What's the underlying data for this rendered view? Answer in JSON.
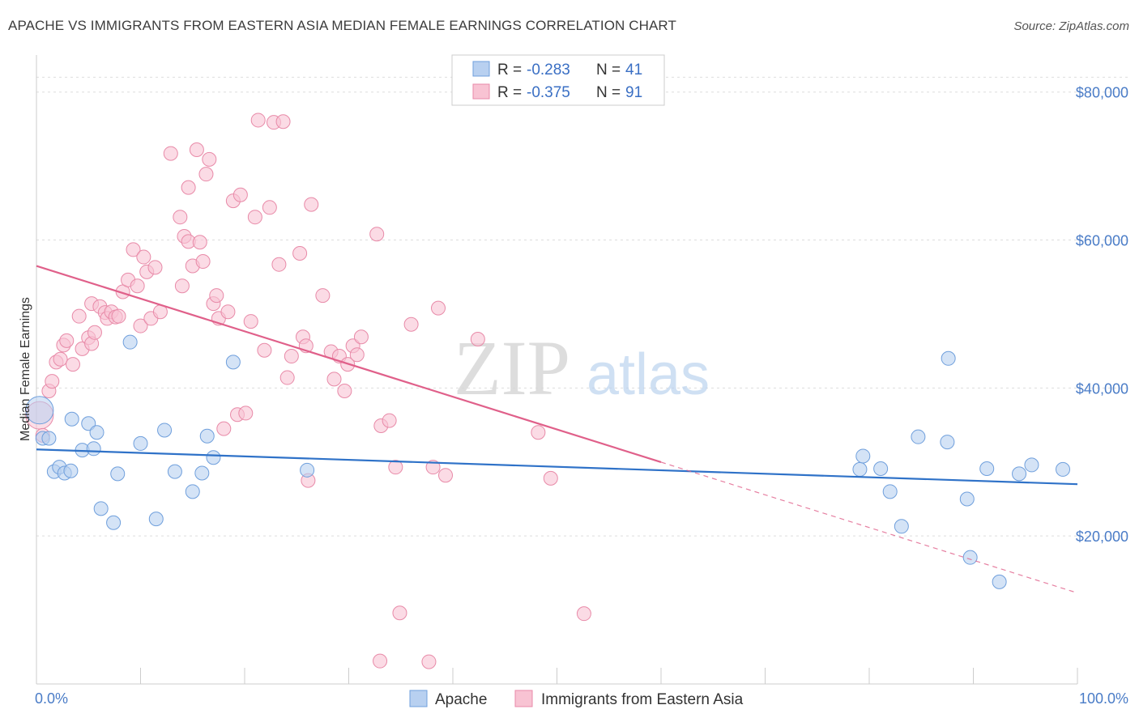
{
  "title": "APACHE VS IMMIGRANTS FROM EASTERN ASIA MEDIAN FEMALE EARNINGS CORRELATION CHART",
  "source": "Source: ZipAtlas.com",
  "watermark": {
    "zip": "ZIP",
    "atlas": "atlas"
  },
  "colors": {
    "apache_fill": "#b8d0f0",
    "apache_stroke": "#6f9fdc",
    "apache_line": "#2f72c8",
    "imm_fill": "#f8c3d3",
    "imm_stroke": "#e88aa8",
    "imm_line": "#e0608a",
    "axis_text": "#4a7cc7",
    "grid": "#dddddd"
  },
  "legend": {
    "rows": [
      {
        "r_label": "R = ",
        "r_value": "-0.283",
        "n_label": "N = ",
        "n_value": "41"
      },
      {
        "r_label": "R = ",
        "r_value": "-0.375",
        "n_label": "N = ",
        "n_value": "91"
      }
    ]
  },
  "chart_data": {
    "type": "scatter",
    "ylabel": "Median Female Earnings",
    "xlim": [
      0,
      100
    ],
    "ylim": [
      0,
      85000
    ],
    "x_tick_labels": [
      "0.0%",
      "100.0%"
    ],
    "y_ticks": [
      20000,
      40000,
      60000,
      80000
    ],
    "y_tick_labels": [
      "$20,000",
      "$40,000",
      "$60,000",
      "$80,000"
    ],
    "grid": true,
    "legend_position": "top-center",
    "series": [
      {
        "name": "Apache",
        "trend": {
          "x": [
            0,
            100
          ],
          "y": [
            31700,
            27000
          ],
          "solid_until": 100
        },
        "points": [
          [
            0.3,
            37000
          ],
          [
            0.6,
            33200
          ],
          [
            1.2,
            33200
          ],
          [
            1.7,
            28700
          ],
          [
            2.2,
            29300
          ],
          [
            2.7,
            28500
          ],
          [
            3.3,
            28800
          ],
          [
            3.4,
            35800
          ],
          [
            4.4,
            31600
          ],
          [
            5.0,
            35200
          ],
          [
            5.5,
            31800
          ],
          [
            5.8,
            34000
          ],
          [
            6.2,
            23700
          ],
          [
            7.4,
            21800
          ],
          [
            7.8,
            28400
          ],
          [
            9.0,
            46200
          ],
          [
            10.0,
            32500
          ],
          [
            11.5,
            22300
          ],
          [
            12.3,
            34300
          ],
          [
            13.3,
            28700
          ],
          [
            15.0,
            26000
          ],
          [
            15.9,
            28500
          ],
          [
            16.4,
            33500
          ],
          [
            17.0,
            30600
          ],
          [
            18.9,
            43500
          ],
          [
            26.0,
            28900
          ],
          [
            79.1,
            29000
          ],
          [
            79.4,
            30800
          ],
          [
            81.1,
            29100
          ],
          [
            82.0,
            26000
          ],
          [
            83.1,
            21300
          ],
          [
            84.7,
            33400
          ],
          [
            87.6,
            44000
          ],
          [
            87.5,
            32700
          ],
          [
            89.4,
            25000
          ],
          [
            89.7,
            17100
          ],
          [
            91.3,
            29100
          ],
          [
            92.5,
            13800
          ],
          [
            94.4,
            28400
          ],
          [
            95.6,
            29600
          ],
          [
            98.6,
            29000
          ]
        ]
      },
      {
        "name": "Immigrants from Eastern Asia",
        "trend": {
          "x": [
            0,
            100
          ],
          "y": [
            56500,
            12300
          ],
          "solid_until": 60
        },
        "points": [
          [
            0.3,
            36300
          ],
          [
            0.6,
            33600
          ],
          [
            1.2,
            39600
          ],
          [
            1.5,
            40900
          ],
          [
            1.9,
            43500
          ],
          [
            2.3,
            43900
          ],
          [
            2.6,
            45800
          ],
          [
            2.9,
            46400
          ],
          [
            3.5,
            43200
          ],
          [
            4.1,
            49700
          ],
          [
            4.4,
            45300
          ],
          [
            5.0,
            46800
          ],
          [
            5.3,
            46000
          ],
          [
            5.6,
            47500
          ],
          [
            5.3,
            51400
          ],
          [
            6.1,
            51000
          ],
          [
            6.6,
            50200
          ],
          [
            6.8,
            49400
          ],
          [
            7.2,
            50300
          ],
          [
            7.6,
            49600
          ],
          [
            7.9,
            49700
          ],
          [
            8.3,
            53000
          ],
          [
            8.8,
            54600
          ],
          [
            9.3,
            58700
          ],
          [
            9.7,
            53800
          ],
          [
            10.0,
            48400
          ],
          [
            10.3,
            57700
          ],
          [
            10.6,
            55700
          ],
          [
            11.0,
            49400
          ],
          [
            11.4,
            56300
          ],
          [
            11.9,
            50300
          ],
          [
            12.9,
            71700
          ],
          [
            13.8,
            63100
          ],
          [
            14.0,
            53800
          ],
          [
            14.2,
            60500
          ],
          [
            14.6,
            59800
          ],
          [
            14.6,
            67100
          ],
          [
            15.0,
            56500
          ],
          [
            15.4,
            72200
          ],
          [
            15.7,
            59700
          ],
          [
            16.0,
            57100
          ],
          [
            16.3,
            68900
          ],
          [
            16.6,
            70900
          ],
          [
            17.0,
            51400
          ],
          [
            17.3,
            52500
          ],
          [
            17.5,
            49400
          ],
          [
            18.0,
            34500
          ],
          [
            18.4,
            50300
          ],
          [
            18.9,
            65300
          ],
          [
            19.3,
            36400
          ],
          [
            19.6,
            66100
          ],
          [
            20.1,
            36600
          ],
          [
            20.6,
            49000
          ],
          [
            21.0,
            63100
          ],
          [
            21.3,
            76200
          ],
          [
            21.9,
            45100
          ],
          [
            22.4,
            64400
          ],
          [
            22.8,
            75900
          ],
          [
            23.3,
            56700
          ],
          [
            23.7,
            76000
          ],
          [
            24.1,
            41400
          ],
          [
            24.5,
            44300
          ],
          [
            25.3,
            58200
          ],
          [
            25.6,
            46900
          ],
          [
            25.9,
            45700
          ],
          [
            26.1,
            27500
          ],
          [
            26.4,
            64800
          ],
          [
            27.5,
            52500
          ],
          [
            28.3,
            44900
          ],
          [
            28.6,
            41200
          ],
          [
            29.1,
            44300
          ],
          [
            29.6,
            39600
          ],
          [
            29.9,
            43200
          ],
          [
            30.4,
            45700
          ],
          [
            30.8,
            44500
          ],
          [
            31.2,
            46900
          ],
          [
            32.7,
            60800
          ],
          [
            33.0,
            3100
          ],
          [
            33.1,
            34900
          ],
          [
            33.9,
            35600
          ],
          [
            34.5,
            29300
          ],
          [
            34.9,
            9600
          ],
          [
            36.0,
            48600
          ],
          [
            37.7,
            3000
          ],
          [
            38.1,
            29300
          ],
          [
            38.6,
            50800
          ],
          [
            39.3,
            28200
          ],
          [
            42.4,
            46600
          ],
          [
            48.2,
            34000
          ],
          [
            49.4,
            27800
          ],
          [
            52.6,
            9500
          ]
        ]
      }
    ]
  },
  "bottom_legend": [
    {
      "label": "Apache"
    },
    {
      "label": "Immigrants from Eastern Asia"
    }
  ]
}
